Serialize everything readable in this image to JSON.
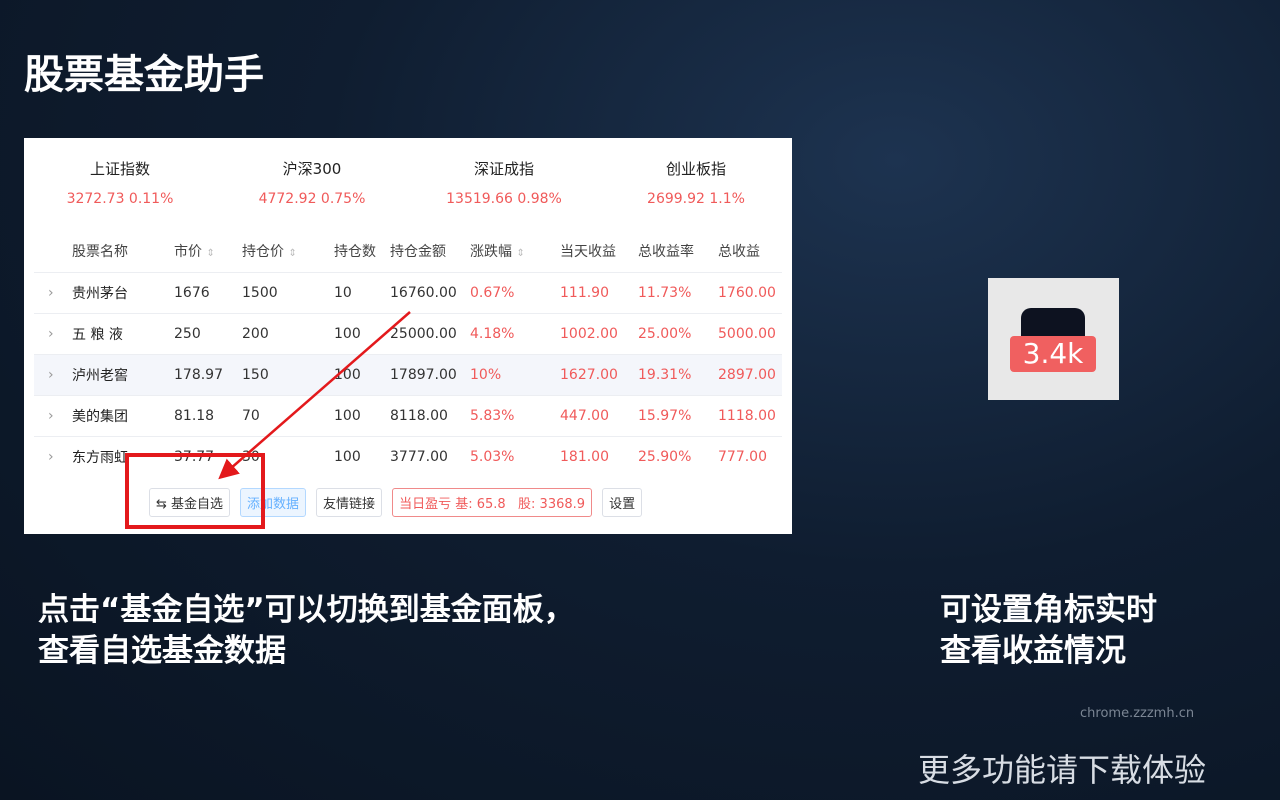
{
  "title": "股票基金助手",
  "indices": [
    {
      "name": "上证指数",
      "value": "3272.73 0.11%"
    },
    {
      "name": "沪深300",
      "value": "4772.92 0.75%"
    },
    {
      "name": "深证成指",
      "value": "13519.66 0.98%"
    },
    {
      "name": "创业板指",
      "value": "2699.92 1.1%"
    }
  ],
  "columns": [
    "股票名称",
    "市价",
    "持仓价",
    "持仓数",
    "持仓金额",
    "涨跌幅",
    "当天收益",
    "总收益率",
    "总收益"
  ],
  "rows": [
    [
      "贵州茅台",
      "1676",
      "1500",
      "10",
      "16760.00",
      "0.67%",
      "111.90",
      "11.73%",
      "1760.00"
    ],
    [
      "五 粮 液",
      "250",
      "200",
      "100",
      "25000.00",
      "4.18%",
      "1002.00",
      "25.00%",
      "5000.00"
    ],
    [
      "泸州老窖",
      "178.97",
      "150",
      "100",
      "17897.00",
      "10%",
      "1627.00",
      "19.31%",
      "2897.00"
    ],
    [
      "美的集团",
      "81.18",
      "70",
      "100",
      "8118.00",
      "5.83%",
      "447.00",
      "15.97%",
      "1118.00"
    ],
    [
      "东方雨虹",
      "37.77",
      "30",
      "100",
      "3777.00",
      "5.03%",
      "181.00",
      "25.90%",
      "777.00"
    ]
  ],
  "buttons": {
    "fund": "⇆ 基金自选",
    "add": "添加数据",
    "links": "友情链接",
    "status": "当日盈亏 基: 65.8   股: 3368.9",
    "settings": "设置"
  },
  "badge": "3.4k",
  "caption_left": [
    "点击“基金自选”可以切换到基金面板，",
    "查看自选基金数据"
  ],
  "caption_right": [
    "可设置角标实时",
    "查看收益情况"
  ],
  "url": "chrome.zzzmh.cn",
  "footer": "更多功能请下载体验",
  "colors": {
    "up": "#f05a5a",
    "highlight": "#e3191c"
  }
}
